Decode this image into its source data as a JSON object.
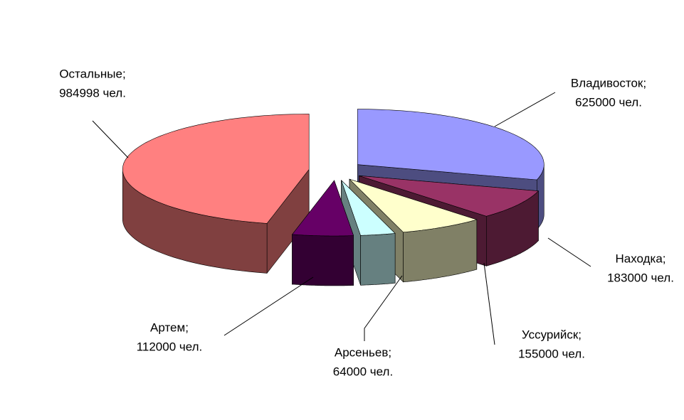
{
  "chart_data": {
    "type": "pie3d",
    "categories": [
      "Владивосток;",
      "Находка;",
      "Уссурийск;",
      "Арсеньев;",
      "Артем;",
      "Остальные;"
    ],
    "values": [
      625000,
      183000,
      155000,
      64000,
      112000,
      984998
    ],
    "value_labels": [
      "625000 чел.",
      "183000 чел.",
      "155000 чел.",
      "64000 чел.",
      "112000 чел.",
      "984998 чел."
    ],
    "colors": [
      "#9999ff",
      "#993366",
      "#ffffcc",
      "#ccffff",
      "#660066",
      "#ff8080"
    ]
  }
}
